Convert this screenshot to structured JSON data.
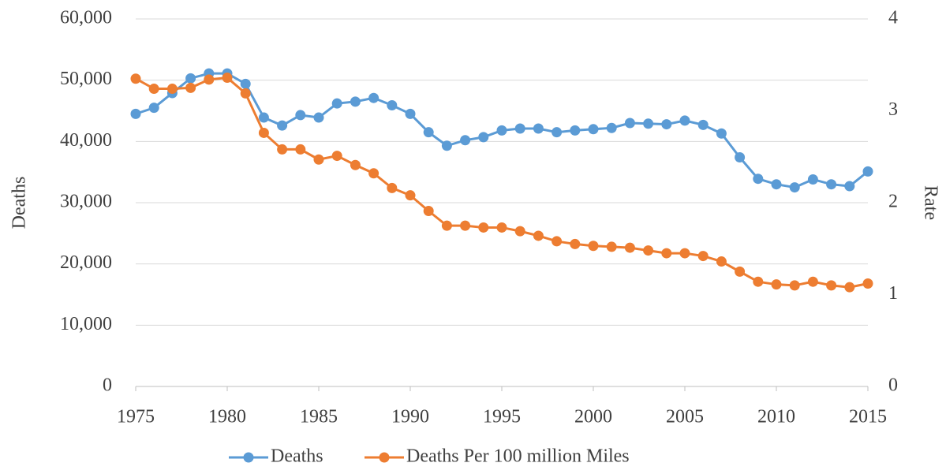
{
  "chart_data": {
    "type": "line",
    "x": [
      1975,
      1976,
      1977,
      1978,
      1979,
      1980,
      1981,
      1982,
      1983,
      1984,
      1985,
      1986,
      1987,
      1988,
      1989,
      1990,
      1991,
      1992,
      1993,
      1994,
      1995,
      1996,
      1997,
      1998,
      1999,
      2000,
      2001,
      2002,
      2003,
      2004,
      2005,
      2006,
      2007,
      2008,
      2009,
      2010,
      2011,
      2012,
      2013,
      2014,
      2015
    ],
    "series": [
      {
        "name": "Deaths",
        "color": "#5b9bd5",
        "axis": "y",
        "values": [
          44500,
          45500,
          47900,
          50300,
          51100,
          51100,
          49400,
          43900,
          42600,
          44300,
          43900,
          46200,
          46500,
          47100,
          45900,
          44500,
          41500,
          39300,
          40200,
          40700,
          41800,
          42100,
          42100,
          41500,
          41800,
          42000,
          42200,
          43000,
          42900,
          42800,
          43400,
          42700,
          41300,
          37400,
          33900,
          33000,
          32500,
          33800,
          33000,
          32700,
          35100
        ]
      },
      {
        "name": "Deaths Per 100 million Miles",
        "color": "#ed7d31",
        "axis": "y2",
        "values": [
          3.35,
          3.24,
          3.24,
          3.25,
          3.34,
          3.36,
          3.19,
          2.76,
          2.58,
          2.58,
          2.47,
          2.51,
          2.41,
          2.32,
          2.16,
          2.08,
          1.91,
          1.75,
          1.75,
          1.73,
          1.73,
          1.69,
          1.64,
          1.58,
          1.55,
          1.53,
          1.52,
          1.51,
          1.48,
          1.45,
          1.45,
          1.42,
          1.36,
          1.25,
          1.14,
          1.11,
          1.1,
          1.14,
          1.1,
          1.08,
          1.12
        ]
      }
    ],
    "y_label": "Deaths",
    "y2_label": "Rate",
    "xlim": [
      1975,
      2015
    ],
    "xticks": [
      1975,
      1980,
      1985,
      1990,
      1995,
      2000,
      2005,
      2010,
      2015
    ],
    "ylim": [
      0,
      60000
    ],
    "yticks": [
      0,
      {
        "value": 10000,
        "label": "10,000"
      },
      {
        "value": 20000,
        "label": "20,000"
      },
      {
        "value": 30000,
        "label": "30,000"
      },
      {
        "value": 40000,
        "label": "40,000"
      },
      {
        "value": 50000,
        "label": "50,000"
      },
      {
        "value": 60000,
        "label": "60,000"
      }
    ],
    "y2lim": [
      0,
      4
    ],
    "y2ticks": [
      0,
      1,
      2,
      3,
      4
    ],
    "grid": true,
    "legend": "bottom"
  }
}
